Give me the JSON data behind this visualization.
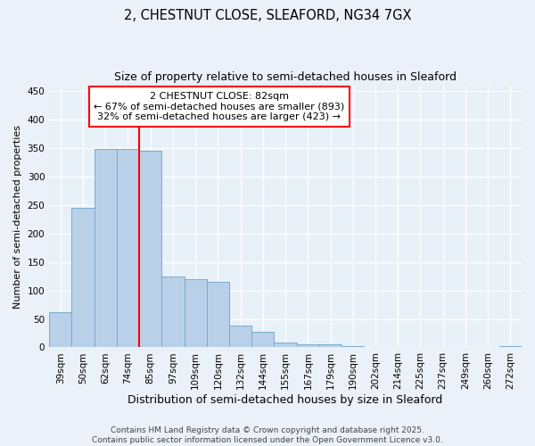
{
  "title_line1": "2, CHESTNUT CLOSE, SLEAFORD, NG34 7GX",
  "title_line2": "Size of property relative to semi-detached houses in Sleaford",
  "xlabel": "Distribution of semi-detached houses by size in Sleaford",
  "ylabel": "Number of semi-detached properties",
  "bar_labels": [
    "39sqm",
    "50sqm",
    "62sqm",
    "74sqm",
    "85sqm",
    "97sqm",
    "109sqm",
    "120sqm",
    "132sqm",
    "144sqm",
    "155sqm",
    "167sqm",
    "179sqm",
    "190sqm",
    "202sqm",
    "214sqm",
    "225sqm",
    "237sqm",
    "249sqm",
    "260sqm",
    "272sqm"
  ],
  "bar_values": [
    62,
    245,
    348,
    348,
    345,
    125,
    120,
    115,
    38,
    28,
    8,
    5,
    5,
    3,
    0,
    0,
    0,
    0,
    0,
    0,
    3
  ],
  "bar_color": "#b8d0e8",
  "bar_edge_color": "#7aabcf",
  "annotation_title": "2 CHESTNUT CLOSE: 82sqm",
  "annotation_line1": "← 67% of semi-detached houses are smaller (893)",
  "annotation_line2": "32% of semi-detached houses are larger (423) →",
  "annotation_box_color": "white",
  "annotation_box_edge_color": "red",
  "vline_color": "red",
  "vline_x": 3.5,
  "ylim": [
    0,
    460
  ],
  "yticks": [
    0,
    50,
    100,
    150,
    200,
    250,
    300,
    350,
    400,
    450
  ],
  "footer_line1": "Contains HM Land Registry data © Crown copyright and database right 2025.",
  "footer_line2": "Contains public sector information licensed under the Open Government Licence v3.0.",
  "bg_color": "#eaf1f8",
  "plot_bg_color": "#e8f0f8",
  "grid_color": "white",
  "title1_fontsize": 10.5,
  "title2_fontsize": 9,
  "ylabel_fontsize": 8,
  "xlabel_fontsize": 9,
  "tick_fontsize": 7.5,
  "footer_fontsize": 6.5,
  "annot_fontsize": 8
}
